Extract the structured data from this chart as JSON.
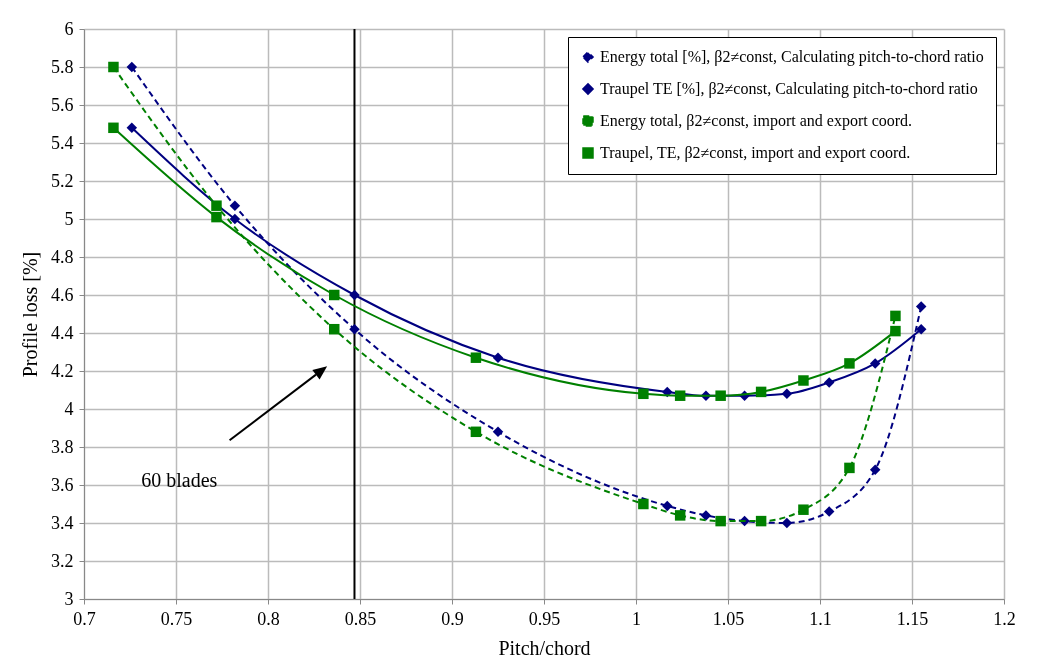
{
  "chart_data": {
    "type": "line",
    "xlabel": "Pitch/chord",
    "ylabel": "Profile loss [%]",
    "xlim": [
      0.7,
      1.2
    ],
    "ylim": [
      3,
      6
    ],
    "xticks": [
      0.7,
      0.75,
      0.8,
      0.85,
      0.9,
      0.95,
      1,
      1.05,
      1.1,
      1.15,
      1.2
    ],
    "yticks": [
      3,
      3.2,
      3.4,
      3.6,
      3.8,
      4,
      4.2,
      4.4,
      4.6,
      4.8,
      5,
      5.2,
      5.4,
      5.6,
      5.8,
      6
    ],
    "grid": true,
    "legend": "top right",
    "series": [
      {
        "name": "Energy total [%], β2≠const, Calculating pitch-to-chord ratio",
        "color": "#000080",
        "marker": "diamond",
        "line_style": "dashed",
        "x": [
          0.726,
          0.782,
          0.847,
          0.925,
          1.017,
          1.038,
          1.059,
          1.082,
          1.105,
          1.13,
          1.155
        ],
        "values": [
          5.8,
          5.07,
          4.42,
          3.88,
          3.49,
          3.44,
          3.41,
          3.4,
          3.46,
          3.68,
          4.54
        ]
      },
      {
        "name": "Traupel TE [%], β2≠const, Calculating pitch-to-chord ratio",
        "color": "#000080",
        "marker": "diamond",
        "line_style": "solid",
        "x": [
          0.726,
          0.782,
          0.847,
          0.925,
          1.017,
          1.038,
          1.059,
          1.082,
          1.105,
          1.13,
          1.155
        ],
        "values": [
          5.48,
          5.0,
          4.6,
          4.27,
          4.09,
          4.07,
          4.07,
          4.08,
          4.14,
          4.24,
          4.42
        ]
      },
      {
        "name": "Energy total, β2≠const, import and export coord.",
        "color": "#008000",
        "marker": "square",
        "line_style": "dashed",
        "x": [
          0.716,
          0.772,
          0.836,
          0.913,
          1.004,
          1.024,
          1.046,
          1.068,
          1.091,
          1.116,
          1.141
        ],
        "values": [
          5.8,
          5.07,
          4.42,
          3.88,
          3.5,
          3.44,
          3.41,
          3.41,
          3.47,
          3.69,
          4.49
        ]
      },
      {
        "name": "Traupel, TE, β2≠const, import and export coord.",
        "color": "#008000",
        "marker": "square",
        "line_style": "solid",
        "x": [
          0.716,
          0.772,
          0.836,
          0.913,
          1.004,
          1.024,
          1.046,
          1.068,
          1.091,
          1.116,
          1.141
        ],
        "values": [
          5.48,
          5.01,
          4.6,
          4.27,
          4.08,
          4.07,
          4.07,
          4.09,
          4.15,
          4.24,
          4.41
        ]
      }
    ],
    "ref_lines": [
      {
        "axis": "x",
        "value": 0.847,
        "color": "#000000"
      }
    ],
    "annotations": [
      "60 blades"
    ]
  }
}
